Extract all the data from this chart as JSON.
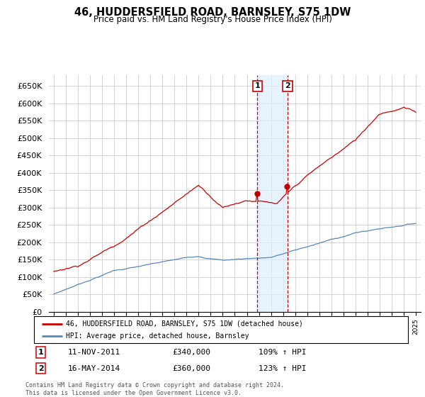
{
  "title": "46, HUDDERSFIELD ROAD, BARNSLEY, S75 1DW",
  "subtitle": "Price paid vs. HM Land Registry's House Price Index (HPI)",
  "legend_line1": "46, HUDDERSFIELD ROAD, BARNSLEY, S75 1DW (detached house)",
  "legend_line2": "HPI: Average price, detached house, Barnsley",
  "sale1_date": "11-NOV-2011",
  "sale1_price": "£340,000",
  "sale1_hpi": "109% ↑ HPI",
  "sale1_year": 2011.87,
  "sale1_value": 340000,
  "sale2_date": "16-MAY-2014",
  "sale2_price": "£360,000",
  "sale2_hpi": "123% ↑ HPI",
  "sale2_year": 2014.37,
  "sale2_value": 360000,
  "red_color": "#cc0000",
  "blue_color": "#5588bb",
  "shade_color": "#ddeeff",
  "background_color": "#ffffff",
  "grid_color": "#cccccc",
  "ylim_min": 0,
  "ylim_max": 680000,
  "yticks": [
    0,
    50000,
    100000,
    150000,
    200000,
    250000,
    300000,
    350000,
    400000,
    450000,
    500000,
    550000,
    600000,
    650000
  ],
  "footnote": "Contains HM Land Registry data © Crown copyright and database right 2024.\nThis data is licensed under the Open Government Licence v3.0."
}
